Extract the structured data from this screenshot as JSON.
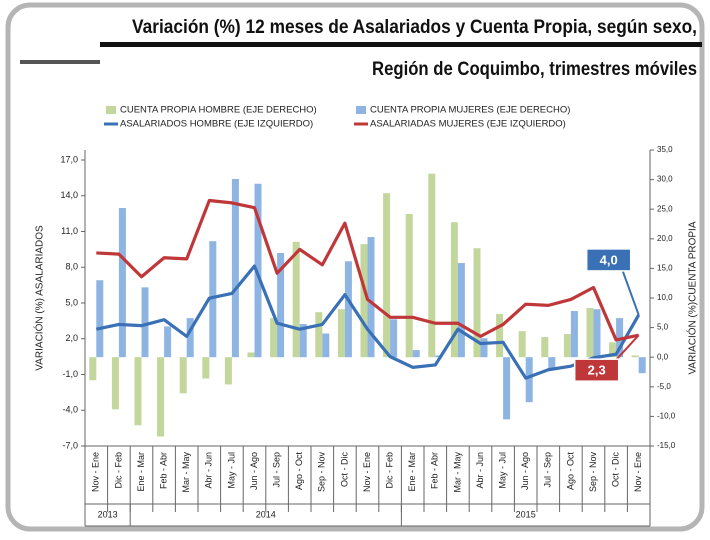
{
  "chart_data": {
    "type": "bar_line",
    "title": "Variación (%) 12 meses de Asalariados y Cuenta Propia, según sexo,",
    "subtitle": "Región de Coquimbo, trimestres móviles",
    "ylabel": "VARIACIÓN (%) ASALARIADOS",
    "y2label": "VARIACIÓN (%)CUENTA PROPIA",
    "categories": [
      "Nov - Ene",
      "Dic - Feb",
      "Ene - Mar",
      "Feb - Abr",
      "Mar - May",
      "Abr - Jun",
      "May - Jul",
      "Jun - Ago",
      "Jul - Sep",
      "Ago - Oct",
      "Sep - Nov",
      "Oct - Dic",
      "Nov - Ene",
      "Dic - Feb",
      "Ene - Mar",
      "Feb - Abr",
      "Mar - May",
      "Abr - Jun",
      "May - Jul",
      "Jun - Ago",
      "Jul - Sep",
      "Ago - Oct",
      "Sep - Nov",
      "Oct - Dic",
      "Nov - Ene"
    ],
    "x_groups": [
      {
        "label": "2013",
        "count": 2
      },
      {
        "label": "2014",
        "count": 12
      },
      {
        "label": "2015",
        "count": 11
      }
    ],
    "ylim": [
      -7,
      17
    ],
    "yticks": [
      {
        "value": -7,
        "label": "-7,0"
      },
      {
        "value": -4,
        "label": "-4,0"
      },
      {
        "value": -1,
        "label": "-1,0"
      },
      {
        "value": 2,
        "label": "2,0"
      },
      {
        "value": 5,
        "label": "5,0"
      },
      {
        "value": 8,
        "label": "8,0"
      },
      {
        "value": 11,
        "label": "11,0"
      },
      {
        "value": 14,
        "label": "14,0"
      },
      {
        "value": 17,
        "label": "17,0"
      }
    ],
    "y2lim": [
      -15,
      35
    ],
    "y2ticks": [
      {
        "value": -15,
        "label": "-15,0"
      },
      {
        "value": -10,
        "label": "-10,0"
      },
      {
        "value": -5,
        "label": "-5,0"
      },
      {
        "value": 0,
        "label": "0,0"
      },
      {
        "value": 5,
        "label": "5,0"
      },
      {
        "value": 10,
        "label": "10,0"
      },
      {
        "value": 15,
        "label": "15,0"
      },
      {
        "value": 20,
        "label": "20,0"
      },
      {
        "value": 25,
        "label": "25,0"
      },
      {
        "value": 30,
        "label": "30,0"
      },
      {
        "value": 35,
        "label": "35,0"
      }
    ],
    "grid": false,
    "series": [
      {
        "name": "CUENTA PROPIA HOMBRE (EJE DERECHO)",
        "kind": "bar",
        "axis": "y2",
        "color": "#c3d69b",
        "values": [
          -3.9,
          -8.8,
          -11.5,
          -13.4,
          -6.1,
          -3.6,
          -4.6,
          0.8,
          6.6,
          19.5,
          7.6,
          8.1,
          19.1,
          27.7,
          24.2,
          31.0,
          22.8,
          18.4,
          7.3,
          4.4,
          3.4,
          3.9,
          8.3,
          2.5,
          0.3
        ]
      },
      {
        "name": "CUENTA PROPIA MUJERES (EJE DERECHO)",
        "kind": "bar",
        "axis": "y2",
        "color": "#8eb4e3",
        "values": [
          13.0,
          25.2,
          11.8,
          5.2,
          6.6,
          19.6,
          30.1,
          29.3,
          17.6,
          5.6,
          4.0,
          16.2,
          20.3,
          6.4,
          1.2,
          0.3,
          15.9,
          3.2,
          -10.5,
          -7.6,
          -2.2,
          7.8,
          8.1,
          6.6,
          -2.7
        ]
      },
      {
        "name": "ASALARIADOS HOMBRE  (EJE IZQUIERDO)",
        "kind": "line",
        "color": "#3a70b5",
        "values": [
          2.8,
          3.2,
          3.1,
          3.6,
          2.2,
          5.4,
          5.8,
          8.1,
          3.3,
          2.8,
          3.2,
          5.7,
          2.8,
          0.5,
          -0.4,
          -0.2,
          2.8,
          1.6,
          1.7,
          -1.3,
          -0.6,
          -0.3,
          0.4,
          0.7,
          4.0
        ],
        "value_labels": [
          null,
          null,
          null,
          null,
          null,
          null,
          null,
          null,
          null,
          null,
          null,
          null,
          null,
          null,
          null,
          null,
          null,
          null,
          null,
          null,
          null,
          null,
          null,
          null,
          "4,0"
        ]
      },
      {
        "name": "ASALARIADAS MUJERES (EJE IZQUIERDO)",
        "kind": "line",
        "color": "#c0373a",
        "values": [
          9.2,
          9.1,
          7.2,
          8.8,
          8.7,
          13.6,
          13.4,
          13.0,
          7.5,
          9.5,
          8.2,
          11.7,
          5.3,
          3.8,
          3.8,
          3.3,
          3.3,
          2.2,
          3.2,
          4.9,
          4.8,
          5.3,
          6.3,
          1.9,
          2.3
        ],
        "value_labels": [
          null,
          null,
          null,
          null,
          null,
          null,
          null,
          null,
          null,
          null,
          null,
          null,
          null,
          null,
          null,
          null,
          null,
          null,
          null,
          null,
          null,
          null,
          null,
          null,
          "2,3"
        ]
      }
    ]
  }
}
